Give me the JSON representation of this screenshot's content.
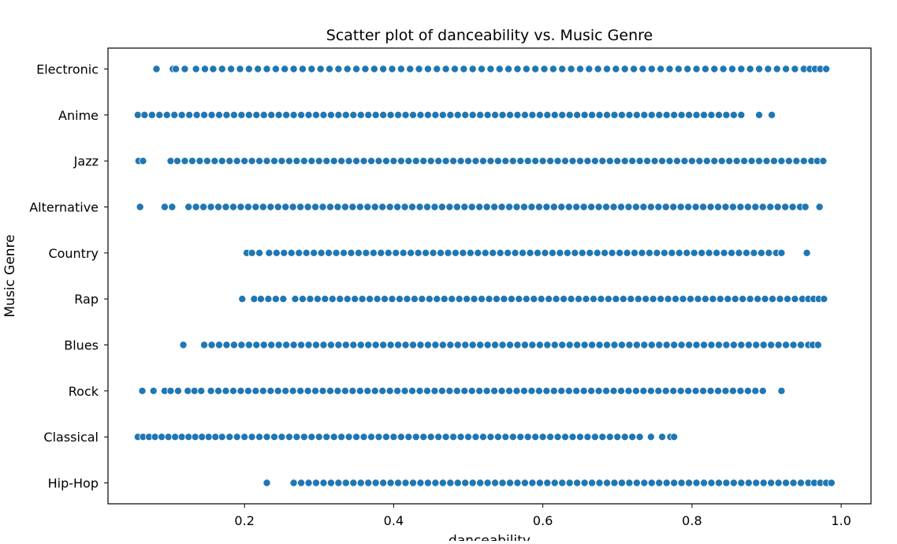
{
  "chart_data": {
    "type": "scatter",
    "title": "Scatter plot of danceability vs. Music Genre",
    "xlabel": "danceability",
    "ylabel": "Music Genre",
    "xlim": [
      0.017,
      1.04
    ],
    "x_ticks": [
      0.2,
      0.4,
      0.6,
      0.8,
      1.0
    ],
    "x_tick_labels": [
      "0.2",
      "0.4",
      "0.6",
      "0.8",
      "1.0"
    ],
    "categories": [
      "Electronic",
      "Anime",
      "Jazz",
      "Alternative",
      "Country",
      "Rap",
      "Blues",
      "Rock",
      "Classical",
      "Hip-Hop"
    ],
    "grid": false,
    "legend": "none",
    "colors": {
      "marker": "#1f77b4",
      "marker_edge": "#ffffff",
      "axes": "#000000"
    },
    "series": [
      {
        "category": "Electronic",
        "x": [
          0.082,
          0.104,
          0.108,
          0.12,
          0.135,
          0.147,
          0.158,
          0.17,
          0.182,
          0.194,
          0.206,
          0.218,
          0.23,
          0.242,
          0.254,
          0.266,
          0.278,
          0.29,
          0.302,
          0.314,
          0.326,
          0.338,
          0.35,
          0.362,
          0.374,
          0.386,
          0.398,
          0.41,
          0.422,
          0.434,
          0.446,
          0.458,
          0.47,
          0.482,
          0.494,
          0.506,
          0.518,
          0.53,
          0.542,
          0.554,
          0.566,
          0.578,
          0.59,
          0.602,
          0.614,
          0.626,
          0.638,
          0.65,
          0.662,
          0.674,
          0.686,
          0.698,
          0.71,
          0.722,
          0.734,
          0.746,
          0.758,
          0.77,
          0.782,
          0.794,
          0.806,
          0.818,
          0.83,
          0.842,
          0.854,
          0.866,
          0.878,
          0.89,
          0.902,
          0.914,
          0.926,
          0.938,
          0.95,
          0.958,
          0.965,
          0.972,
          0.98
        ]
      },
      {
        "category": "Anime",
        "x": [
          0.057,
          0.066,
          0.076,
          0.086,
          0.096,
          0.106,
          0.116,
          0.126,
          0.136,
          0.146,
          0.156,
          0.166,
          0.176,
          0.186,
          0.196,
          0.206,
          0.216,
          0.226,
          0.236,
          0.246,
          0.256,
          0.266,
          0.276,
          0.286,
          0.296,
          0.306,
          0.316,
          0.326,
          0.336,
          0.346,
          0.356,
          0.366,
          0.376,
          0.386,
          0.396,
          0.406,
          0.416,
          0.426,
          0.436,
          0.446,
          0.456,
          0.466,
          0.476,
          0.486,
          0.496,
          0.506,
          0.516,
          0.526,
          0.536,
          0.546,
          0.556,
          0.566,
          0.576,
          0.586,
          0.596,
          0.606,
          0.616,
          0.626,
          0.636,
          0.646,
          0.656,
          0.666,
          0.676,
          0.686,
          0.696,
          0.706,
          0.716,
          0.726,
          0.736,
          0.746,
          0.756,
          0.766,
          0.776,
          0.786,
          0.796,
          0.806,
          0.816,
          0.826,
          0.836,
          0.846,
          0.856,
          0.866,
          0.89,
          0.907
        ]
      },
      {
        "category": "Jazz",
        "x": [
          0.058,
          0.064,
          0.101,
          0.11,
          0.12,
          0.13,
          0.14,
          0.15,
          0.16,
          0.17,
          0.18,
          0.19,
          0.2,
          0.21,
          0.22,
          0.23,
          0.24,
          0.25,
          0.26,
          0.27,
          0.28,
          0.29,
          0.3,
          0.31,
          0.32,
          0.33,
          0.34,
          0.35,
          0.36,
          0.37,
          0.38,
          0.39,
          0.4,
          0.41,
          0.42,
          0.43,
          0.44,
          0.45,
          0.46,
          0.47,
          0.48,
          0.49,
          0.5,
          0.51,
          0.52,
          0.53,
          0.54,
          0.55,
          0.56,
          0.57,
          0.58,
          0.59,
          0.6,
          0.61,
          0.62,
          0.63,
          0.64,
          0.65,
          0.66,
          0.67,
          0.68,
          0.69,
          0.7,
          0.71,
          0.72,
          0.73,
          0.74,
          0.75,
          0.76,
          0.77,
          0.78,
          0.79,
          0.8,
          0.81,
          0.82,
          0.83,
          0.84,
          0.85,
          0.86,
          0.87,
          0.88,
          0.89,
          0.9,
          0.91,
          0.92,
          0.93,
          0.94,
          0.95,
          0.96,
          0.968,
          0.976
        ]
      },
      {
        "category": "Alternative",
        "x": [
          0.06,
          0.093,
          0.103,
          0.125,
          0.135,
          0.145,
          0.155,
          0.165,
          0.175,
          0.185,
          0.195,
          0.205,
          0.215,
          0.225,
          0.235,
          0.245,
          0.255,
          0.265,
          0.275,
          0.285,
          0.295,
          0.305,
          0.315,
          0.325,
          0.335,
          0.345,
          0.355,
          0.365,
          0.375,
          0.385,
          0.395,
          0.405,
          0.415,
          0.425,
          0.435,
          0.445,
          0.455,
          0.465,
          0.475,
          0.485,
          0.495,
          0.505,
          0.515,
          0.525,
          0.535,
          0.545,
          0.555,
          0.565,
          0.575,
          0.585,
          0.595,
          0.605,
          0.615,
          0.625,
          0.635,
          0.645,
          0.655,
          0.665,
          0.675,
          0.685,
          0.695,
          0.705,
          0.715,
          0.725,
          0.735,
          0.745,
          0.755,
          0.765,
          0.775,
          0.785,
          0.795,
          0.805,
          0.815,
          0.825,
          0.835,
          0.845,
          0.855,
          0.865,
          0.875,
          0.885,
          0.895,
          0.905,
          0.915,
          0.925,
          0.935,
          0.945,
          0.952,
          0.971
        ]
      },
      {
        "category": "Country",
        "x": [
          0.203,
          0.21,
          0.22,
          0.233,
          0.243,
          0.253,
          0.263,
          0.273,
          0.283,
          0.293,
          0.303,
          0.313,
          0.323,
          0.333,
          0.343,
          0.353,
          0.363,
          0.373,
          0.383,
          0.393,
          0.403,
          0.413,
          0.423,
          0.433,
          0.443,
          0.453,
          0.463,
          0.473,
          0.483,
          0.493,
          0.503,
          0.513,
          0.523,
          0.533,
          0.543,
          0.553,
          0.563,
          0.573,
          0.583,
          0.593,
          0.603,
          0.613,
          0.623,
          0.633,
          0.643,
          0.653,
          0.663,
          0.673,
          0.683,
          0.693,
          0.703,
          0.713,
          0.723,
          0.733,
          0.743,
          0.753,
          0.763,
          0.773,
          0.783,
          0.793,
          0.803,
          0.813,
          0.823,
          0.833,
          0.843,
          0.853,
          0.863,
          0.873,
          0.883,
          0.893,
          0.903,
          0.913,
          0.92,
          0.954
        ]
      },
      {
        "category": "Rap",
        "x": [
          0.197,
          0.213,
          0.222,
          0.232,
          0.242,
          0.252,
          0.268,
          0.278,
          0.288,
          0.298,
          0.308,
          0.318,
          0.328,
          0.338,
          0.348,
          0.358,
          0.368,
          0.378,
          0.388,
          0.398,
          0.408,
          0.418,
          0.428,
          0.438,
          0.448,
          0.458,
          0.468,
          0.478,
          0.488,
          0.498,
          0.508,
          0.518,
          0.528,
          0.538,
          0.548,
          0.558,
          0.568,
          0.578,
          0.588,
          0.598,
          0.608,
          0.618,
          0.628,
          0.638,
          0.648,
          0.658,
          0.668,
          0.678,
          0.688,
          0.698,
          0.708,
          0.718,
          0.728,
          0.738,
          0.748,
          0.758,
          0.768,
          0.778,
          0.788,
          0.798,
          0.808,
          0.818,
          0.828,
          0.838,
          0.848,
          0.858,
          0.868,
          0.878,
          0.888,
          0.898,
          0.908,
          0.918,
          0.928,
          0.938,
          0.948,
          0.956,
          0.963,
          0.97,
          0.977
        ]
      },
      {
        "category": "Blues",
        "x": [
          0.118,
          0.146,
          0.156,
          0.166,
          0.176,
          0.186,
          0.196,
          0.206,
          0.216,
          0.226,
          0.236,
          0.246,
          0.256,
          0.266,
          0.276,
          0.286,
          0.296,
          0.306,
          0.316,
          0.326,
          0.336,
          0.346,
          0.356,
          0.366,
          0.376,
          0.386,
          0.396,
          0.406,
          0.416,
          0.426,
          0.436,
          0.446,
          0.456,
          0.466,
          0.476,
          0.486,
          0.496,
          0.506,
          0.516,
          0.526,
          0.536,
          0.546,
          0.556,
          0.566,
          0.576,
          0.586,
          0.596,
          0.606,
          0.616,
          0.626,
          0.636,
          0.646,
          0.656,
          0.666,
          0.676,
          0.686,
          0.696,
          0.706,
          0.716,
          0.726,
          0.736,
          0.746,
          0.756,
          0.766,
          0.776,
          0.786,
          0.796,
          0.806,
          0.816,
          0.826,
          0.836,
          0.846,
          0.856,
          0.866,
          0.876,
          0.886,
          0.896,
          0.906,
          0.916,
          0.926,
          0.936,
          0.946,
          0.956,
          0.962,
          0.969
        ]
      },
      {
        "category": "Rock",
        "x": [
          0.063,
          0.078,
          0.093,
          0.101,
          0.111,
          0.124,
          0.133,
          0.142,
          0.155,
          0.165,
          0.175,
          0.185,
          0.195,
          0.205,
          0.215,
          0.225,
          0.235,
          0.245,
          0.255,
          0.265,
          0.275,
          0.285,
          0.295,
          0.305,
          0.315,
          0.325,
          0.335,
          0.345,
          0.355,
          0.365,
          0.375,
          0.385,
          0.395,
          0.405,
          0.415,
          0.425,
          0.435,
          0.445,
          0.455,
          0.465,
          0.475,
          0.485,
          0.495,
          0.505,
          0.515,
          0.525,
          0.535,
          0.545,
          0.555,
          0.565,
          0.575,
          0.585,
          0.595,
          0.605,
          0.615,
          0.625,
          0.635,
          0.645,
          0.655,
          0.665,
          0.675,
          0.685,
          0.695,
          0.705,
          0.715,
          0.725,
          0.735,
          0.745,
          0.755,
          0.765,
          0.775,
          0.785,
          0.795,
          0.805,
          0.815,
          0.825,
          0.835,
          0.845,
          0.855,
          0.865,
          0.875,
          0.885,
          0.895,
          0.92
        ]
      },
      {
        "category": "Classical",
        "x": [
          0.057,
          0.064,
          0.072,
          0.08,
          0.089,
          0.098,
          0.107,
          0.116,
          0.125,
          0.134,
          0.143,
          0.152,
          0.161,
          0.17,
          0.18,
          0.19,
          0.2,
          0.21,
          0.22,
          0.23,
          0.24,
          0.25,
          0.26,
          0.27,
          0.28,
          0.29,
          0.3,
          0.31,
          0.32,
          0.33,
          0.34,
          0.35,
          0.36,
          0.37,
          0.38,
          0.39,
          0.4,
          0.41,
          0.42,
          0.43,
          0.44,
          0.45,
          0.46,
          0.47,
          0.48,
          0.49,
          0.5,
          0.51,
          0.52,
          0.53,
          0.54,
          0.55,
          0.56,
          0.57,
          0.58,
          0.59,
          0.6,
          0.61,
          0.62,
          0.63,
          0.64,
          0.65,
          0.66,
          0.67,
          0.68,
          0.69,
          0.7,
          0.71,
          0.72,
          0.73,
          0.745,
          0.76,
          0.771,
          0.776
        ]
      },
      {
        "category": "Hip-Hop",
        "x": [
          0.23,
          0.266,
          0.276,
          0.286,
          0.296,
          0.306,
          0.316,
          0.326,
          0.336,
          0.346,
          0.356,
          0.366,
          0.376,
          0.386,
          0.396,
          0.406,
          0.416,
          0.426,
          0.436,
          0.446,
          0.456,
          0.466,
          0.476,
          0.486,
          0.496,
          0.506,
          0.516,
          0.526,
          0.536,
          0.546,
          0.556,
          0.566,
          0.576,
          0.586,
          0.596,
          0.606,
          0.616,
          0.626,
          0.636,
          0.646,
          0.656,
          0.666,
          0.676,
          0.686,
          0.696,
          0.706,
          0.716,
          0.726,
          0.736,
          0.746,
          0.756,
          0.766,
          0.776,
          0.786,
          0.796,
          0.806,
          0.816,
          0.826,
          0.836,
          0.846,
          0.856,
          0.866,
          0.876,
          0.886,
          0.896,
          0.906,
          0.916,
          0.926,
          0.936,
          0.946,
          0.956,
          0.964,
          0.972,
          0.98,
          0.987
        ]
      }
    ]
  }
}
